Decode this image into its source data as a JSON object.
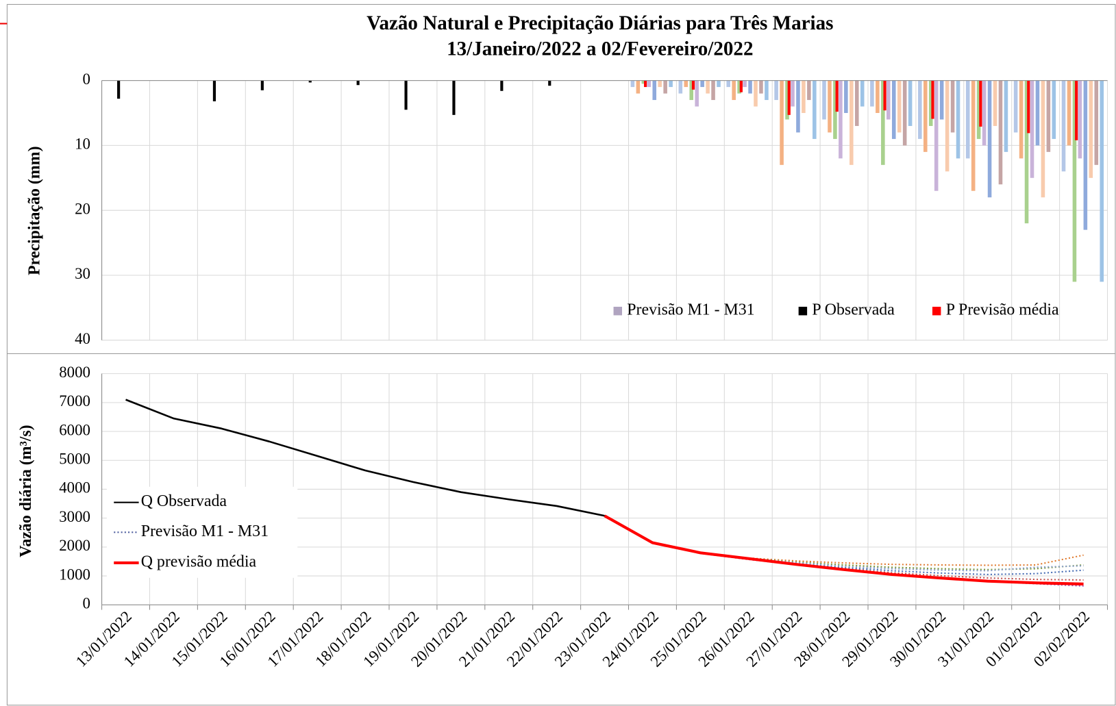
{
  "chart_data": [
    {
      "type": "bar",
      "title": "Vazão Natural e Precipitação Diárias para Três Marias",
      "subtitle": "13/Janeiro/2022 a 02/Fevereiro/2022",
      "y_label": "Precipitação (mm)",
      "ylim": [
        0,
        40
      ],
      "yticks": [
        0,
        10,
        20,
        30,
        40
      ],
      "inverted": true,
      "grid": true,
      "legend": "lower right",
      "series": [
        {
          "name": "Previsão M1 - M31",
          "color": "#b0a4c0",
          "member_colors": [
            "#b4c7e7",
            "#f4b183",
            "#a9d18e",
            "#c9b3d9",
            "#8faadc",
            "#f8cbad",
            "#c5a5a5",
            "#9dc3e6"
          ],
          "members": [
            [
              null,
              null,
              null,
              null,
              null,
              null,
              null,
              null,
              null,
              null,
              null,
              1,
              2,
              1,
              3,
              6,
              4,
              9,
              12,
              8,
              14
            ],
            [
              null,
              null,
              null,
              null,
              null,
              null,
              null,
              null,
              null,
              null,
              null,
              2,
              1,
              3,
              13,
              8,
              5,
              11,
              17,
              12,
              10
            ],
            [
              null,
              null,
              null,
              null,
              null,
              null,
              null,
              null,
              null,
              null,
              null,
              0.5,
              3,
              2,
              6,
              9,
              13,
              7,
              9,
              22,
              31
            ],
            [
              null,
              null,
              null,
              null,
              null,
              null,
              null,
              null,
              null,
              null,
              null,
              1,
              4,
              1,
              4,
              12,
              6,
              17,
              10,
              15,
              12
            ],
            [
              null,
              null,
              null,
              null,
              null,
              null,
              null,
              null,
              null,
              null,
              null,
              3,
              1,
              2,
              8,
              5,
              9,
              6,
              18,
              10,
              23
            ],
            [
              null,
              null,
              null,
              null,
              null,
              null,
              null,
              null,
              null,
              null,
              null,
              1,
              2,
              4,
              5,
              13,
              8,
              14,
              7,
              18,
              15
            ],
            [
              null,
              null,
              null,
              null,
              null,
              null,
              null,
              null,
              null,
              null,
              null,
              2,
              3,
              2,
              3,
              7,
              10,
              8,
              16,
              11,
              13
            ],
            [
              null,
              null,
              null,
              null,
              null,
              null,
              null,
              null,
              null,
              null,
              null,
              1,
              1,
              3,
              9,
              4,
              7,
              12,
              11,
              9,
              31
            ]
          ]
        },
        {
          "name": "P Observada",
          "color": "#000000",
          "values": [
            2.8,
            0,
            3.2,
            1.5,
            0.3,
            0.7,
            4.5,
            5.3,
            1.6,
            0.8,
            0,
            null,
            null,
            null,
            null,
            null,
            null,
            null,
            null,
            null,
            null
          ]
        },
        {
          "name": "P Previsão média",
          "color": "#ff0000",
          "values": [
            null,
            null,
            null,
            null,
            null,
            null,
            null,
            null,
            null,
            null,
            null,
            1,
            1.4,
            1.8,
            5.3,
            4.8,
            4.6,
            5.9,
            7.1,
            8.1,
            9.2
          ]
        }
      ]
    },
    {
      "type": "line",
      "y_label": "Vazão diária (m³/s)",
      "categories": [
        "13/01/2022",
        "14/01/2022",
        "15/01/2022",
        "16/01/2022",
        "17/01/2022",
        "18/01/2022",
        "19/01/2022",
        "20/01/2022",
        "21/01/2022",
        "22/01/2022",
        "23/01/2022",
        "24/01/2022",
        "25/01/2022",
        "26/01/2022",
        "27/01/2022",
        "28/01/2022",
        "29/01/2022",
        "30/01/2022",
        "31/01/2022",
        "01/02/2022",
        "02/02/2022"
      ],
      "ylim": [
        0,
        8000
      ],
      "yticks": [
        0,
        1000,
        2000,
        3000,
        4000,
        5000,
        6000,
        7000,
        8000
      ],
      "grid": true,
      "legend": "center left",
      "series": [
        {
          "name": "Q Observada",
          "color": "#000000",
          "values": [
            7100,
            6450,
            6100,
            5650,
            5150,
            4650,
            4250,
            3900,
            3650,
            3420,
            3080,
            null,
            null,
            null,
            null,
            null,
            null,
            null,
            null,
            null,
            null
          ]
        },
        {
          "name": "Previsão M1 - M31",
          "color": "#5060a0",
          "member_colors": [
            "#e07b30",
            "#7f9a3c",
            "#4a6fb5",
            "#9b59b6",
            "#c0504d",
            "#8aa0c8"
          ],
          "members": [
            [
              null,
              null,
              null,
              null,
              null,
              null,
              null,
              null,
              null,
              null,
              3080,
              2150,
              1800,
              1620,
              1520,
              1450,
              1400,
              1380,
              1370,
              1380,
              1720
            ],
            [
              null,
              null,
              null,
              null,
              null,
              null,
              null,
              null,
              null,
              null,
              3080,
              2150,
              1800,
              1610,
              1480,
              1380,
              1300,
              1250,
              1220,
              1250,
              1380
            ],
            [
              null,
              null,
              null,
              null,
              null,
              null,
              null,
              null,
              null,
              null,
              3080,
              2150,
              1790,
              1590,
              1430,
              1290,
              1180,
              1100,
              1050,
              1080,
              1200
            ],
            [
              null,
              null,
              null,
              null,
              null,
              null,
              null,
              null,
              null,
              null,
              3080,
              2150,
              1780,
              1570,
              1390,
              1210,
              1050,
              920,
              810,
              730,
              650
            ],
            [
              null,
              null,
              null,
              null,
              null,
              null,
              null,
              null,
              null,
              null,
              3080,
              2150,
              1790,
              1580,
              1410,
              1250,
              1110,
              1010,
              930,
              880,
              860
            ],
            [
              null,
              null,
              null,
              null,
              null,
              null,
              null,
              null,
              null,
              null,
              3080,
              2150,
              1800,
              1600,
              1460,
              1330,
              1250,
              1200,
              1180,
              1300,
              1350
            ]
          ]
        },
        {
          "name": "Q previsão média",
          "color": "#ff0000",
          "values": [
            null,
            null,
            null,
            null,
            null,
            null,
            null,
            null,
            null,
            null,
            3080,
            2150,
            1800,
            1600,
            1400,
            1220,
            1050,
            930,
            820,
            760,
            720
          ]
        }
      ]
    }
  ]
}
